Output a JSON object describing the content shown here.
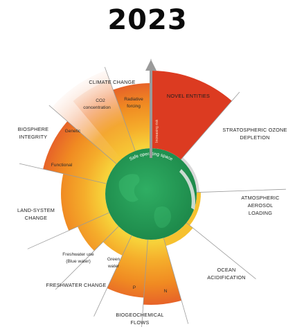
{
  "title": "2023",
  "center_label": "Safe operating space",
  "axis_label": "Increasing risk",
  "colors": {
    "safe": "#229a55",
    "zone_yellow": "#f6c12f",
    "zone_orange": "#f08a22",
    "zone_red": "#dc3b21",
    "not_quantified": "#cfcfcf",
    "divider": "#9a9a9a"
  },
  "boundaries": {
    "climate_change": "CLIMATE CHANGE",
    "co2_line1": "CO2",
    "co2_line2": "concentration",
    "radiative_line1": "Radiative",
    "radiative_line2": "forcing",
    "novel_entities": "NOVEL ENTITIES",
    "ozone_line1": "STRATOSPHERIC OZONE",
    "ozone_line2": "DEPLETION",
    "aerosol_line1": "ATMOSPHERIC",
    "aerosol_line2": "AEROSOL",
    "aerosol_line3": "LOADING",
    "ocean_line1": "OCEAN",
    "ocean_line2": "ACIDIFICATION",
    "biogeo_line1": "BIOGEOCHEMICAL",
    "biogeo_line2": "FLOWS",
    "p": "P",
    "n": "N",
    "freshwater_change": "FRESHWATER CHANGE",
    "green_line1": "Green",
    "green_line2": "water",
    "blue_line1": "Freshwater use",
    "blue_line2": "(Blue water)",
    "land_line1": "LAND-SYSTEM",
    "land_line2": "CHANGE",
    "biosphere_line1": "BIOSPHERE",
    "biosphere_line2": "INTEGRITY",
    "genetic": "Genetic",
    "functional": "Functional"
  }
}
